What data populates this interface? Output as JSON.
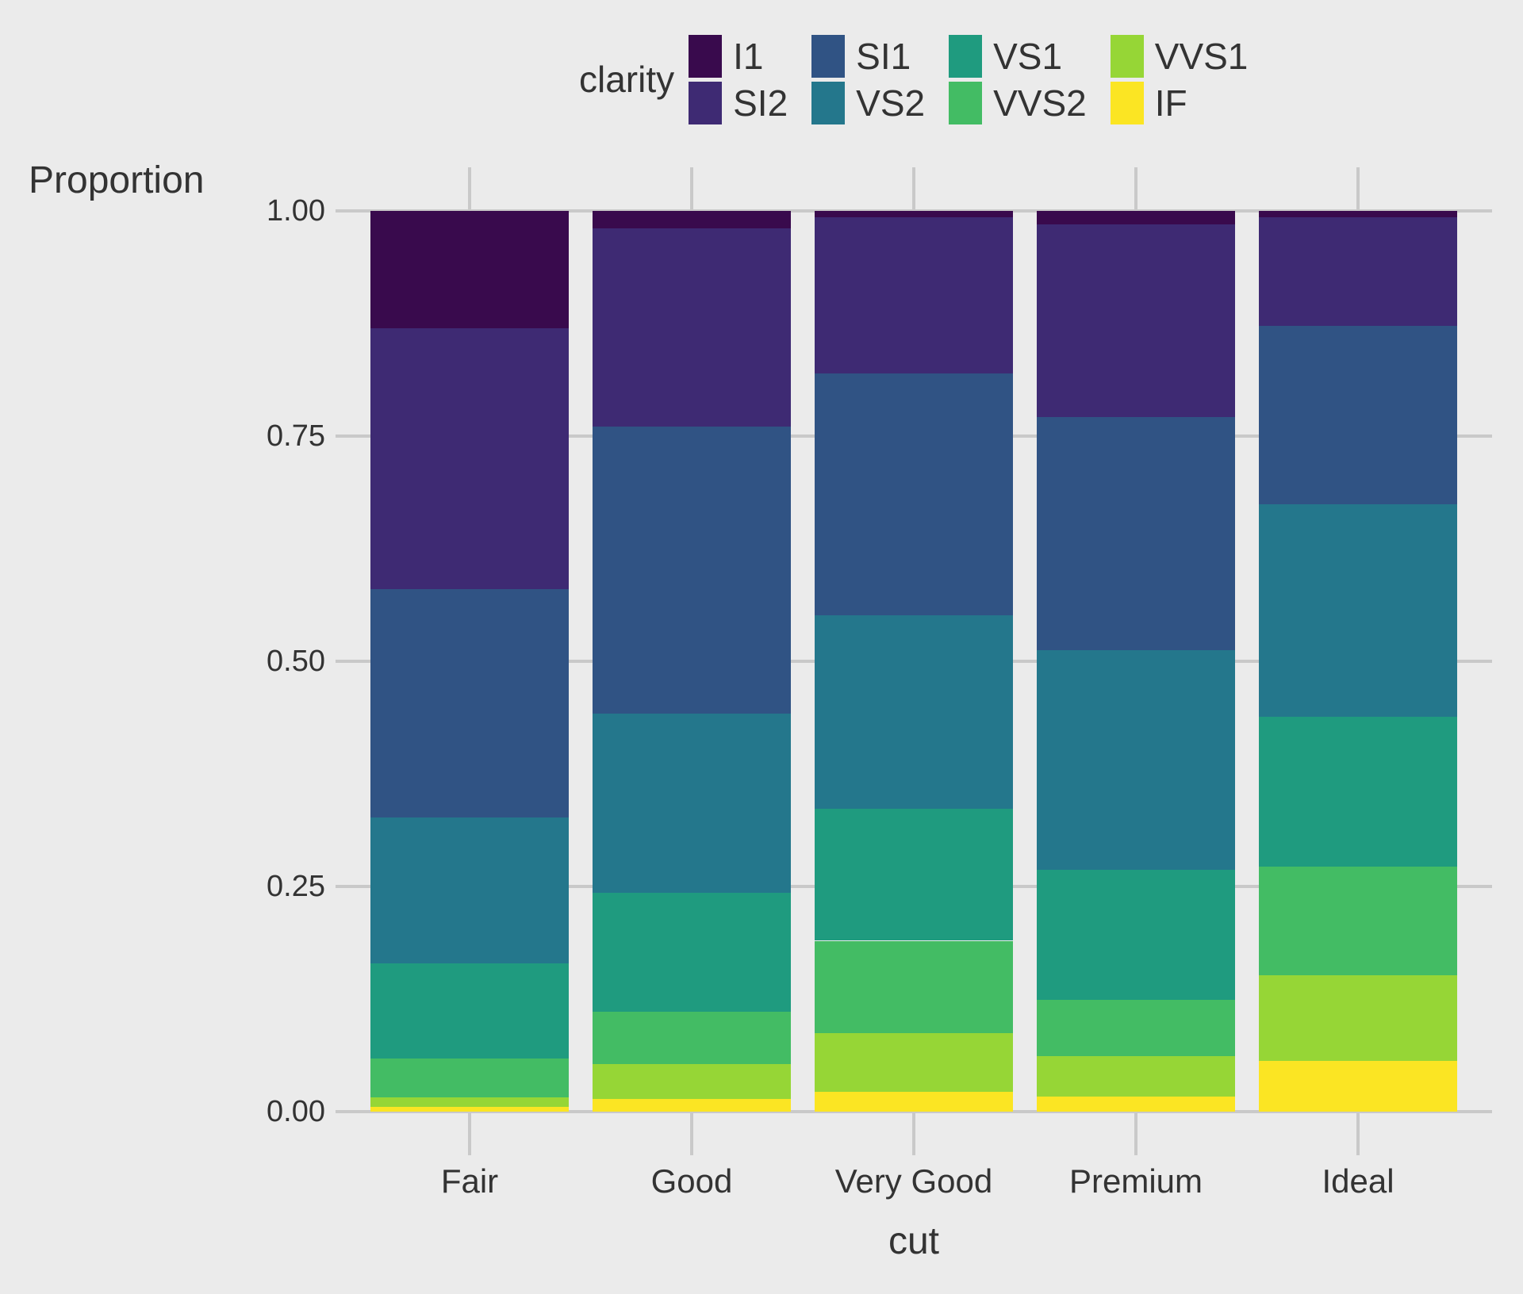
{
  "figure": {
    "background_color": "#EBEBEB",
    "grid_color": "#C9C9C9",
    "text_color": "#333333"
  },
  "legend": {
    "title": "clarity",
    "items": [
      {
        "label": "I1",
        "color": "#390A4D"
      },
      {
        "label": "SI2",
        "color": "#3E2A73"
      },
      {
        "label": "SI1",
        "color": "#305384"
      },
      {
        "label": "VS2",
        "color": "#24778C"
      },
      {
        "label": "VS1",
        "color": "#1F9B7F"
      },
      {
        "label": "VVS2",
        "color": "#43BC64"
      },
      {
        "label": "VVS1",
        "color": "#96D636"
      },
      {
        "label": "IF",
        "color": "#FBE523"
      }
    ]
  },
  "chart_data": {
    "type": "bar",
    "stacked": true,
    "normalized": true,
    "title": "",
    "xlabel": "cut",
    "ylabel": "Proportion",
    "legend_title": "clarity",
    "legend_position": "top",
    "grid": true,
    "ylim": [
      0,
      1
    ],
    "y_ticks": [
      {
        "label": "1.00",
        "value": 1.0
      },
      {
        "label": "0.75",
        "value": 0.75
      },
      {
        "label": "0.50",
        "value": 0.5
      },
      {
        "label": "0.25",
        "value": 0.25
      },
      {
        "label": "0.00",
        "value": 0.0
      }
    ],
    "categories": [
      "Fair",
      "Good",
      "Very Good",
      "Premium",
      "Ideal"
    ],
    "stack_order_bottom_to_top": [
      "IF",
      "VVS1",
      "VVS2",
      "VS1",
      "VS2",
      "SI1",
      "SI2",
      "I1"
    ],
    "series": [
      {
        "name": "I1",
        "values": [
          0.1304,
          0.0196,
          0.007,
          0.0149,
          0.0068
        ]
      },
      {
        "name": "SI2",
        "values": [
          0.2894,
          0.2203,
          0.1738,
          0.2138,
          0.1205
        ]
      },
      {
        "name": "SI1",
        "values": [
          0.2534,
          0.318,
          0.2682,
          0.2592,
          0.1987
        ]
      },
      {
        "name": "VS2",
        "values": [
          0.1621,
          0.1994,
          0.2144,
          0.2434,
          0.2353
        ]
      },
      {
        "name": "VS1",
        "values": [
          0.1056,
          0.1321,
          0.1469,
          0.1442,
          0.1665
        ]
      },
      {
        "name": "VVS2",
        "values": [
          0.0429,
          0.0583,
          0.1022,
          0.0631,
          0.1209
        ]
      },
      {
        "name": "VVS1",
        "values": [
          0.0106,
          0.0379,
          0.0653,
          0.0447,
          0.095
        ]
      },
      {
        "name": "IF",
        "values": [
          0.0056,
          0.0145,
          0.0222,
          0.0167,
          0.0562
        ]
      }
    ]
  }
}
